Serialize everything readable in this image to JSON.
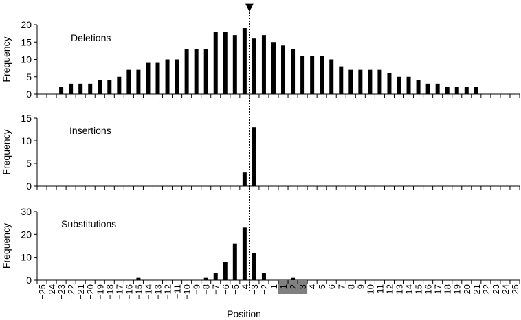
{
  "chart_data": {
    "type": "bar",
    "xlabel": "Position",
    "categories": [
      "-25",
      "-24",
      "-23",
      "-22",
      "-21",
      "-20",
      "-19",
      "-18",
      "-17",
      "-16",
      "-15",
      "-14",
      "-13",
      "-12",
      "-11",
      "-10",
      "-9",
      "-8",
      "-7",
      "-6",
      "-5",
      "-4",
      "-3",
      "-2",
      "-1",
      "1",
      "2",
      "3",
      "4",
      "5",
      "6",
      "7",
      "8",
      "9",
      "10",
      "11",
      "12",
      "13",
      "14",
      "15",
      "16",
      "17",
      "18",
      "19",
      "20",
      "21",
      "22",
      "23",
      "24",
      "25"
    ],
    "highlighted_categories": [
      "1",
      "2",
      "3"
    ],
    "highlight_color": "#808080",
    "bar_color": "#000000",
    "marker": {
      "symbol": "▼",
      "between": [
        "-4",
        "-3"
      ],
      "line_style": "dotted"
    },
    "panels": [
      {
        "name": "Deletions",
        "ylabel": "Frequency",
        "ylim": [
          0,
          20
        ],
        "yticks": [
          0,
          5,
          10,
          15,
          20
        ],
        "values": [
          0,
          0,
          2,
          3,
          3,
          3,
          4,
          4,
          5,
          7,
          7,
          9,
          9,
          10,
          10,
          13,
          13,
          13,
          18,
          18,
          17,
          19,
          16,
          17,
          15,
          14,
          13,
          11,
          11,
          11,
          10,
          8,
          7,
          7,
          7,
          7,
          6,
          5,
          5,
          4,
          3,
          3,
          2,
          2,
          2,
          2,
          0,
          0,
          0,
          0
        ]
      },
      {
        "name": "Insertions",
        "ylabel": "Frequency",
        "ylim": [
          0,
          15
        ],
        "yticks": [
          0,
          5,
          10,
          15
        ],
        "values": [
          0,
          0,
          0,
          0,
          0,
          0,
          0,
          0,
          0,
          0,
          0,
          0,
          0,
          0,
          0,
          0,
          0,
          0,
          0,
          0,
          0,
          3,
          13,
          0,
          0,
          0,
          0,
          0,
          0,
          0,
          0,
          0,
          0,
          0,
          0,
          0,
          0,
          0,
          0,
          0,
          0,
          0,
          0,
          0,
          0,
          0,
          0,
          0,
          0,
          0
        ]
      },
      {
        "name": "Substitutions",
        "ylabel": "Frequency",
        "ylim": [
          0,
          30
        ],
        "yticks": [
          0,
          10,
          20,
          30
        ],
        "values": [
          0,
          0,
          0,
          0,
          0,
          0,
          0,
          0,
          0,
          0,
          1,
          0,
          0,
          0,
          0,
          0,
          0,
          1,
          3,
          8,
          16,
          23,
          12,
          3,
          0,
          0,
          1,
          0,
          0,
          0,
          0,
          0,
          0,
          0,
          0,
          0,
          0,
          0,
          0,
          0,
          0,
          0,
          0,
          0,
          0,
          0,
          0,
          0,
          0,
          0
        ]
      }
    ]
  }
}
